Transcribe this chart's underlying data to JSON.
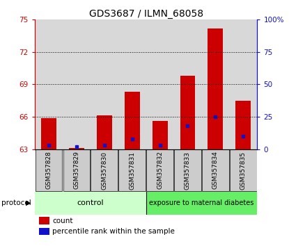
{
  "title": "GDS3687 / ILMN_68058",
  "samples": [
    "GSM357828",
    "GSM357829",
    "GSM357830",
    "GSM357831",
    "GSM357832",
    "GSM357833",
    "GSM357834",
    "GSM357835"
  ],
  "red_values": [
    65.9,
    63.1,
    66.1,
    68.3,
    65.6,
    69.8,
    74.2,
    67.5
  ],
  "blue_values": [
    3.0,
    2.0,
    3.0,
    8.0,
    3.0,
    18.0,
    25.0,
    10.0
  ],
  "y_min": 63,
  "y_max": 75,
  "y_ticks": [
    63,
    66,
    69,
    72,
    75
  ],
  "y2_ticks": [
    0,
    25,
    50,
    75,
    100
  ],
  "y2_labels": [
    "0",
    "25",
    "50",
    "75",
    "100%"
  ],
  "grid_lines": [
    66,
    69,
    72
  ],
  "bar_width": 0.55,
  "red_color": "#cc0000",
  "blue_color": "#1111cc",
  "control_label": "control",
  "treatment_label": "exposure to maternal diabetes",
  "n_control": 4,
  "n_treatment": 4,
  "control_bg": "#ccffcc",
  "treatment_bg": "#66ee66",
  "label_box_bg": "#cccccc",
  "protocol_label": "protocol",
  "legend_count": "count",
  "legend_percentile": "percentile rank within the sample",
  "title_fontsize": 10,
  "tick_fontsize": 7.5,
  "label_fontsize": 8
}
